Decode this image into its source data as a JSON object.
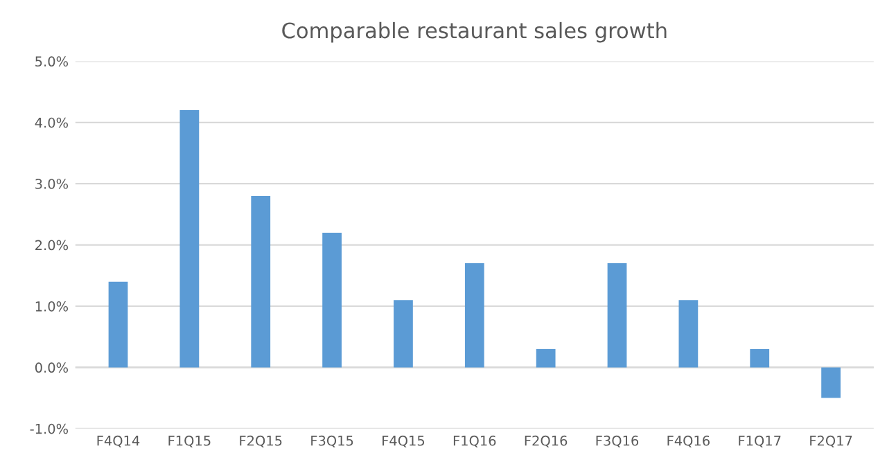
{
  "chart_data": {
    "type": "bar",
    "title": "Comparable restaurant sales growth",
    "categories": [
      "F4Q14",
      "F1Q15",
      "F2Q15",
      "F3Q15",
      "F4Q15",
      "F1Q16",
      "F2Q16",
      "F3Q16",
      "F4Q16",
      "F1Q17",
      "F2Q17"
    ],
    "values": [
      1.4,
      4.2,
      2.8,
      2.2,
      1.1,
      1.7,
      0.3,
      1.7,
      1.1,
      0.3,
      -0.5
    ],
    "color": "#5b9bd5",
    "ylim": [
      -1,
      5
    ],
    "yticks": [
      {
        "value": -1,
        "label": "-1.0%"
      },
      {
        "value": 0,
        "label": "0.0%"
      },
      {
        "value": 1,
        "label": "1.0%"
      },
      {
        "value": 2,
        "label": "2.0%"
      },
      {
        "value": 3,
        "label": "3.0%"
      },
      {
        "value": 4,
        "label": "4.0%"
      },
      {
        "value": 5,
        "label": "5.0%"
      }
    ],
    "grid": "y"
  }
}
